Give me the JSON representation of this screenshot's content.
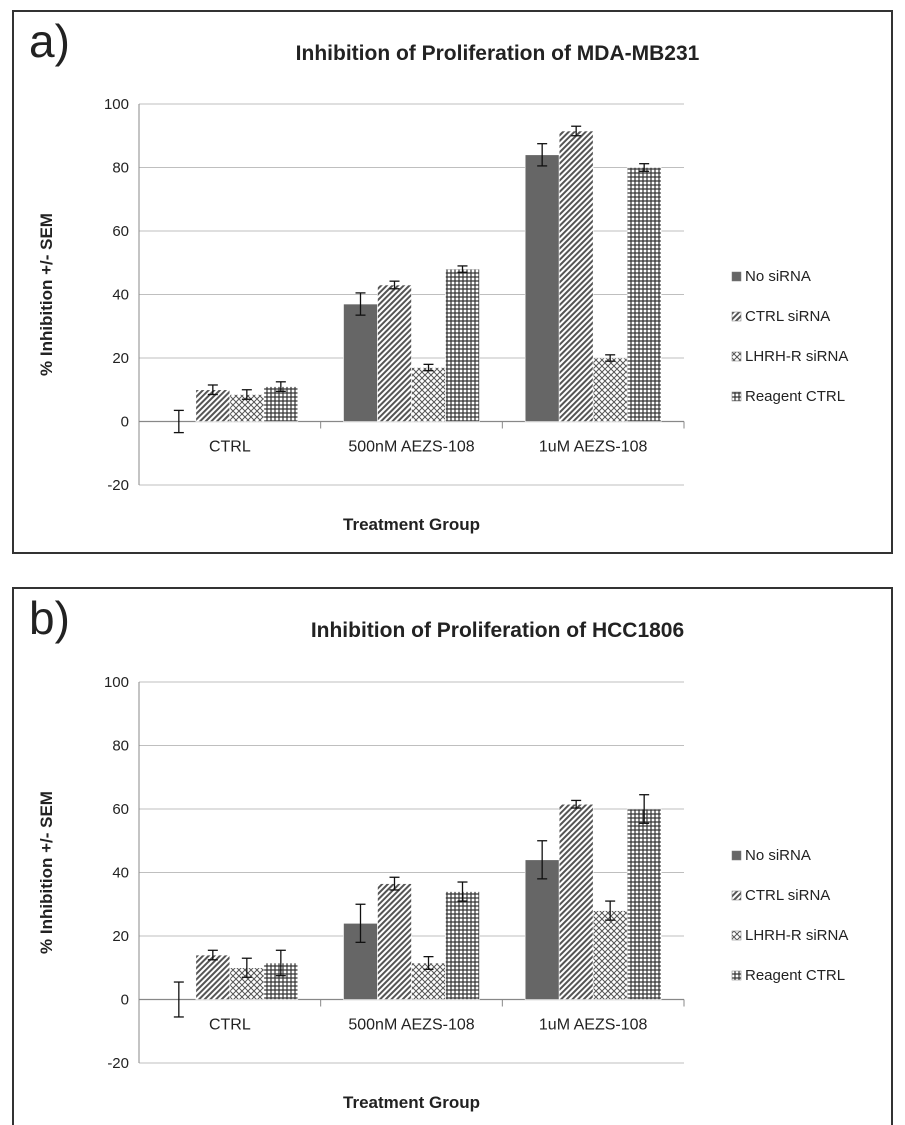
{
  "chart_data": [
    {
      "type": "bar",
      "panel_label": "a)",
      "title": "Inhibition of Proliferation of MDA-MB231",
      "xlabel": "Treatment Group",
      "ylabel": "% Inhibition +/- SEM",
      "ylim": [
        -20,
        100
      ],
      "yticks": [
        -20,
        0,
        20,
        40,
        60,
        80,
        100
      ],
      "grid": true,
      "legend_position": "right",
      "categories": [
        "CTRL",
        "500nM AEZS-108",
        "1uM AEZS-108"
      ],
      "series": [
        {
          "name": "No siRNA",
          "values": [
            0,
            37,
            84
          ],
          "errors": [
            3.5,
            3.5,
            3.5
          ],
          "pattern": "solid"
        },
        {
          "name": "CTRL siRNA",
          "values": [
            10,
            43,
            91.5
          ],
          "errors": [
            1.5,
            1.2,
            1.5
          ],
          "pattern": "diagonal"
        },
        {
          "name": "LHRH-R siRNA",
          "values": [
            8.5,
            17,
            20
          ],
          "errors": [
            1.5,
            1.0,
            1.0
          ],
          "pattern": "crosshatch"
        },
        {
          "name": "Reagent CTRL",
          "values": [
            11,
            48,
            80
          ],
          "errors": [
            1.5,
            1.0,
            1.2
          ],
          "pattern": "grid"
        }
      ]
    },
    {
      "type": "bar",
      "panel_label": "b)",
      "title": "Inhibition of Proliferation of HCC1806",
      "xlabel": "Treatment Group",
      "ylabel": "% Inhibition +/- SEM",
      "ylim": [
        -20,
        100
      ],
      "yticks": [
        -20,
        0,
        20,
        40,
        60,
        80,
        100
      ],
      "grid": true,
      "legend_position": "right",
      "categories": [
        "CTRL",
        "500nM AEZS-108",
        "1uM AEZS-108"
      ],
      "series": [
        {
          "name": "No siRNA",
          "values": [
            0,
            24,
            44
          ],
          "errors": [
            5.5,
            6,
            6
          ],
          "pattern": "solid"
        },
        {
          "name": "CTRL siRNA",
          "values": [
            14,
            36.5,
            61.5
          ],
          "errors": [
            1.5,
            2,
            1.2
          ],
          "pattern": "diagonal"
        },
        {
          "name": "LHRH-R siRNA",
          "values": [
            10,
            11.5,
            28
          ],
          "errors": [
            3,
            2,
            3
          ],
          "pattern": "crosshatch"
        },
        {
          "name": "Reagent CTRL",
          "values": [
            11.5,
            34,
            60
          ],
          "errors": [
            4,
            3,
            4.5
          ],
          "pattern": "grid"
        }
      ]
    }
  ],
  "colors": {
    "bar_solid": "#666666",
    "pattern_line": "#555555",
    "gridline": "#bfbfbf",
    "axis": "#888888"
  }
}
